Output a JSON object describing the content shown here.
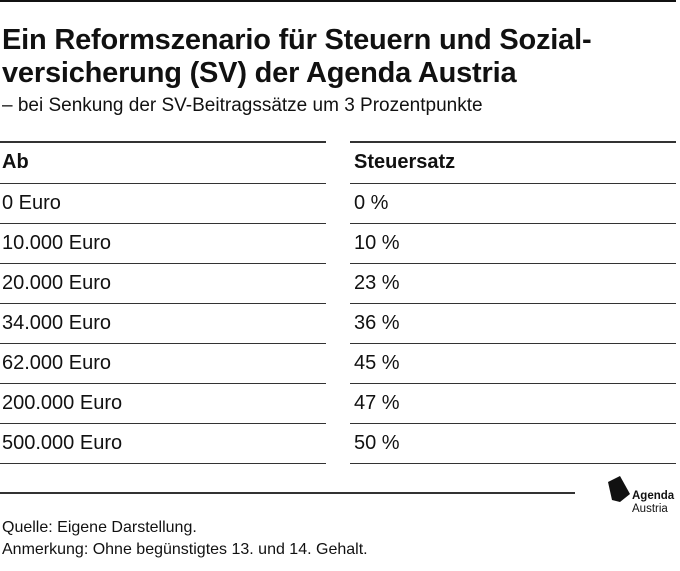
{
  "title": "Ein Reformszenario für Steuern und Sozial-versicherung (SV) der Agenda Austria",
  "subtitle": "– bei Senkung der SV-Beitragssätze um 3 Prozentpunkte",
  "table": {
    "headers": [
      "Ab",
      "Steuersatz"
    ],
    "rows": [
      [
        "0 Euro",
        "0 %"
      ],
      [
        "10.000 Euro",
        "10 %"
      ],
      [
        "20.000 Euro",
        "23 %"
      ],
      [
        "34.000 Euro",
        "36 %"
      ],
      [
        "62.000 Euro",
        "45 %"
      ],
      [
        "200.000 Euro",
        "47 %"
      ],
      [
        "500.000 Euro",
        "50 %"
      ]
    ]
  },
  "notes": {
    "source": "Quelle: Eigene Darstellung.",
    "remark": "Anmerkung: Ohne begünstigtes 13. und 14. Gehalt."
  },
  "logo": {
    "icon": "agenda-austria-logo-icon",
    "line1": "Agenda",
    "line2": "Austria"
  }
}
